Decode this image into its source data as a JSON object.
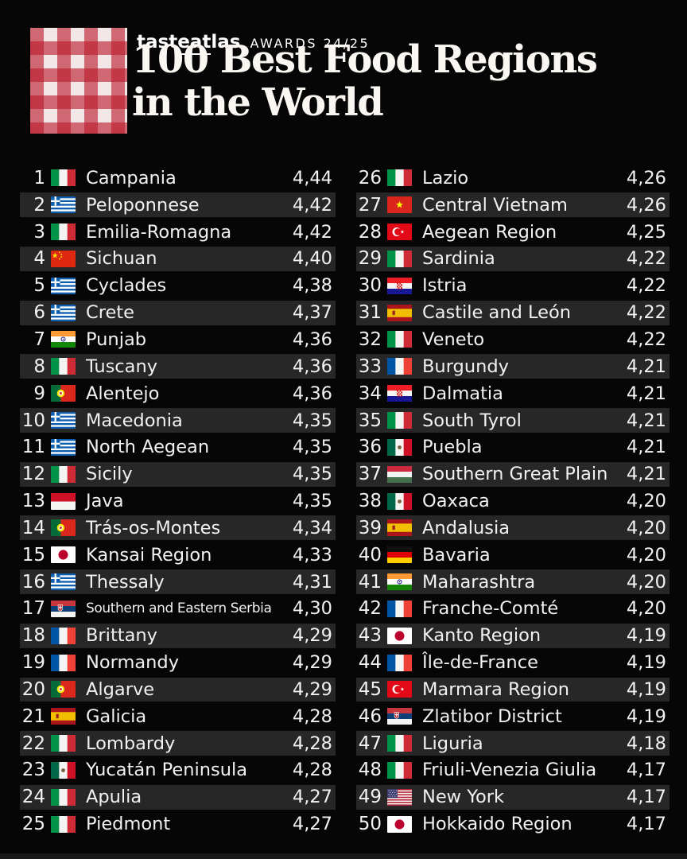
{
  "header": {
    "brand_prefix": "tast",
    "brand_underlined": "eat",
    "brand_suffix": "las",
    "awards_label": "AWARDS 24/25",
    "title_line1": "100 Best Food Regions",
    "title_line2": "in the World"
  },
  "colors": {
    "background": "#060606",
    "row_alt_background": "#272727",
    "text": "#f1f1f1",
    "gingham_red": "#ba1a2b",
    "title_text": "#faf7f2"
  },
  "chart_data": {
    "type": "table",
    "title": "100 Best Food Regions in the World",
    "subtitle": "tasteatlas AWARDS 24/25",
    "columns": [
      "rank",
      "country_flag",
      "region",
      "score"
    ],
    "score_format": "comma-decimal",
    "layout": "two-columns-of-25",
    "rows": [
      {
        "rank": 1,
        "country": "italy",
        "region": "Campania",
        "score": "4,44"
      },
      {
        "rank": 2,
        "country": "greece",
        "region": "Peloponnese",
        "score": "4,42"
      },
      {
        "rank": 3,
        "country": "italy",
        "region": "Emilia-Romagna",
        "score": "4,42"
      },
      {
        "rank": 4,
        "country": "china",
        "region": "Sichuan",
        "score": "4,40"
      },
      {
        "rank": 5,
        "country": "greece",
        "region": "Cyclades",
        "score": "4,38"
      },
      {
        "rank": 6,
        "country": "greece",
        "region": "Crete",
        "score": "4,37"
      },
      {
        "rank": 7,
        "country": "india",
        "region": "Punjab",
        "score": "4,36"
      },
      {
        "rank": 8,
        "country": "italy",
        "region": "Tuscany",
        "score": "4,36"
      },
      {
        "rank": 9,
        "country": "portugal",
        "region": "Alentejo",
        "score": "4,36"
      },
      {
        "rank": 10,
        "country": "greece",
        "region": "Macedonia",
        "score": "4,35"
      },
      {
        "rank": 11,
        "country": "greece",
        "region": "North Aegean",
        "score": "4,35"
      },
      {
        "rank": 12,
        "country": "italy",
        "region": "Sicily",
        "score": "4,35"
      },
      {
        "rank": 13,
        "country": "indonesia",
        "region": "Java",
        "score": "4,35"
      },
      {
        "rank": 14,
        "country": "portugal",
        "region": "Trás-os-Montes",
        "score": "4,34"
      },
      {
        "rank": 15,
        "country": "japan",
        "region": "Kansai Region",
        "score": "4,33"
      },
      {
        "rank": 16,
        "country": "greece",
        "region": "Thessaly",
        "score": "4,31"
      },
      {
        "rank": 17,
        "country": "serbia",
        "region": "Southern and Eastern Serbia",
        "score": "4,30",
        "small_text": true
      },
      {
        "rank": 18,
        "country": "france",
        "region": "Brittany",
        "score": "4,29"
      },
      {
        "rank": 19,
        "country": "france",
        "region": "Normandy",
        "score": "4,29"
      },
      {
        "rank": 20,
        "country": "portugal",
        "region": "Algarve",
        "score": "4,29"
      },
      {
        "rank": 21,
        "country": "spain",
        "region": "Galicia",
        "score": "4,28"
      },
      {
        "rank": 22,
        "country": "italy",
        "region": "Lombardy",
        "score": "4,28"
      },
      {
        "rank": 23,
        "country": "mexico",
        "region": "Yucatán Peninsula",
        "score": "4,28"
      },
      {
        "rank": 24,
        "country": "italy",
        "region": "Apulia",
        "score": "4,27"
      },
      {
        "rank": 25,
        "country": "italy",
        "region": "Piedmont",
        "score": "4,27"
      },
      {
        "rank": 26,
        "country": "italy",
        "region": "Lazio",
        "score": "4,26"
      },
      {
        "rank": 27,
        "country": "vietnam",
        "region": "Central Vietnam",
        "score": "4,26"
      },
      {
        "rank": 28,
        "country": "turkey",
        "region": "Aegean Region",
        "score": "4,25"
      },
      {
        "rank": 29,
        "country": "italy",
        "region": "Sardinia",
        "score": "4,22"
      },
      {
        "rank": 30,
        "country": "croatia",
        "region": "Istria",
        "score": "4,22"
      },
      {
        "rank": 31,
        "country": "spain",
        "region": "Castile and León",
        "score": "4,22"
      },
      {
        "rank": 32,
        "country": "italy",
        "region": "Veneto",
        "score": "4,22"
      },
      {
        "rank": 33,
        "country": "france",
        "region": "Burgundy",
        "score": "4,21"
      },
      {
        "rank": 34,
        "country": "croatia",
        "region": "Dalmatia",
        "score": "4,21"
      },
      {
        "rank": 35,
        "country": "italy",
        "region": "South Tyrol",
        "score": "4,21"
      },
      {
        "rank": 36,
        "country": "mexico",
        "region": "Puebla",
        "score": "4,21"
      },
      {
        "rank": 37,
        "country": "hungary",
        "region": "Southern Great Plain",
        "score": "4,21"
      },
      {
        "rank": 38,
        "country": "mexico",
        "region": "Oaxaca",
        "score": "4,20"
      },
      {
        "rank": 39,
        "country": "spain",
        "region": "Andalusia",
        "score": "4,20"
      },
      {
        "rank": 40,
        "country": "germany",
        "region": "Bavaria",
        "score": "4,20"
      },
      {
        "rank": 41,
        "country": "india",
        "region": "Maharashtra",
        "score": "4,20"
      },
      {
        "rank": 42,
        "country": "france",
        "region": "Franche-Comté",
        "score": "4,20"
      },
      {
        "rank": 43,
        "country": "japan",
        "region": "Kanto Region",
        "score": "4,19"
      },
      {
        "rank": 44,
        "country": "france",
        "region": "Île-de-France",
        "score": "4,19"
      },
      {
        "rank": 45,
        "country": "turkey",
        "region": "Marmara Region",
        "score": "4,19"
      },
      {
        "rank": 46,
        "country": "serbia",
        "region": "Zlatibor District",
        "score": "4,19"
      },
      {
        "rank": 47,
        "country": "italy",
        "region": "Liguria",
        "score": "4,18"
      },
      {
        "rank": 48,
        "country": "italy",
        "region": "Friuli-Venezia Giulia",
        "score": "4,17"
      },
      {
        "rank": 49,
        "country": "usa",
        "region": "New York",
        "score": "4,17"
      },
      {
        "rank": 50,
        "country": "japan",
        "region": "Hokkaido Region",
        "score": "4,17"
      }
    ]
  }
}
